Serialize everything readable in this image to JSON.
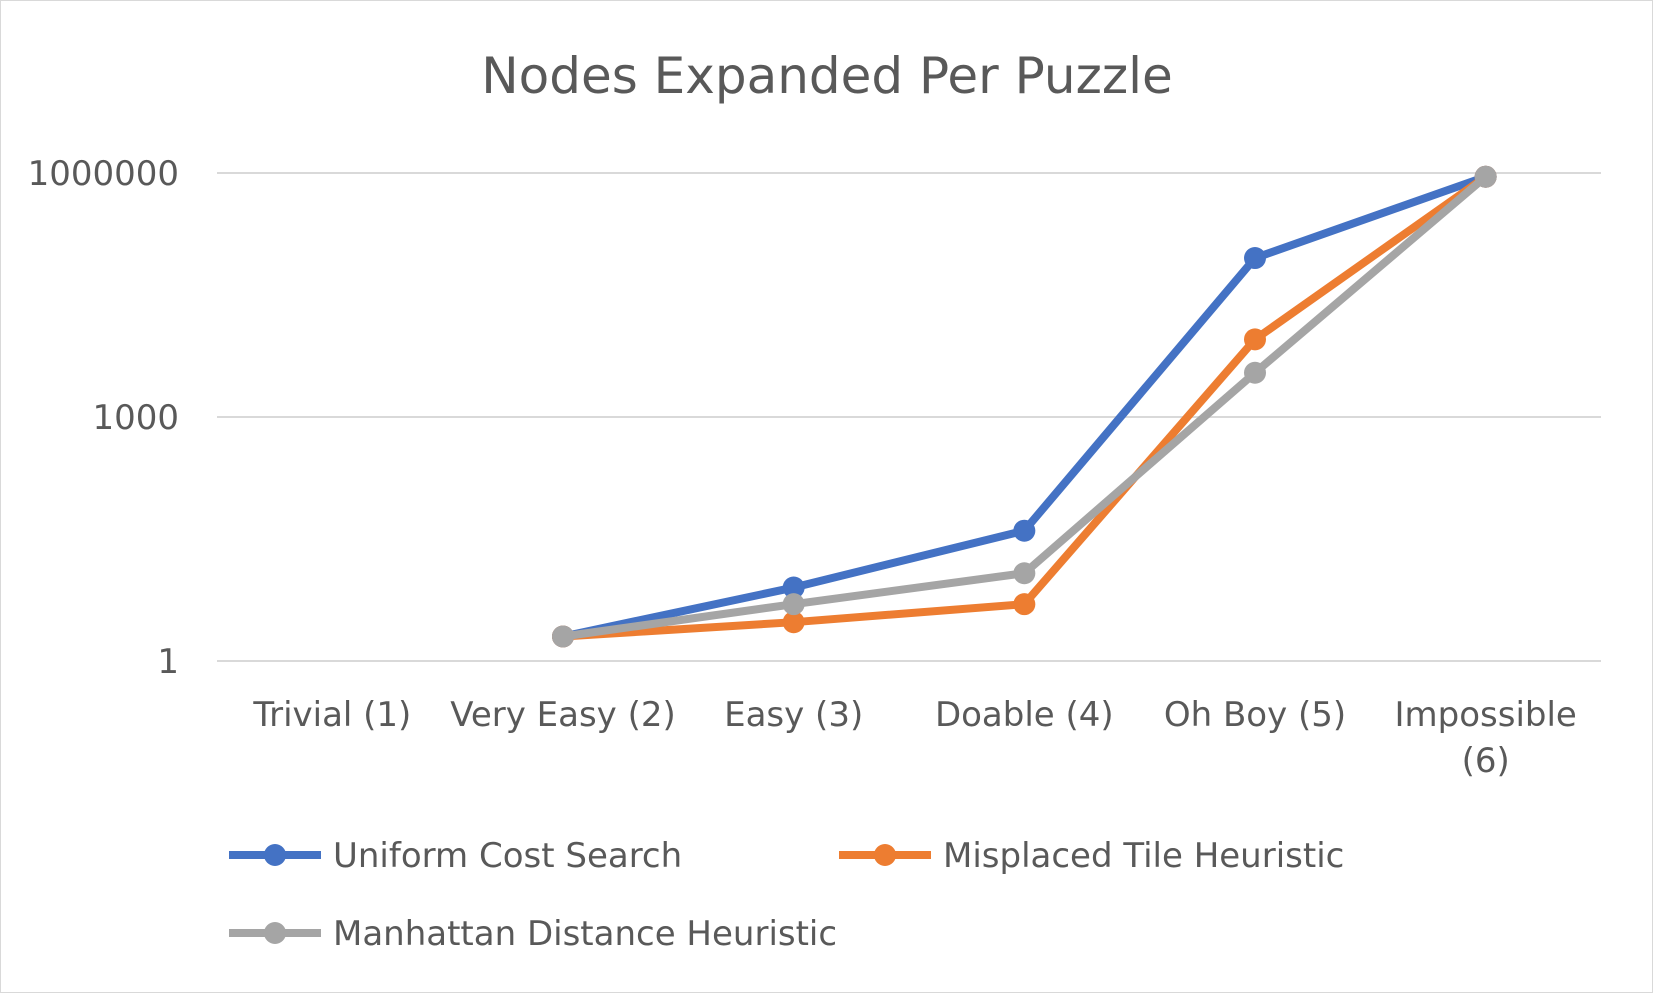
{
  "chart_data": {
    "type": "line",
    "title": "Nodes Expanded Per Puzzle",
    "xlabel": "",
    "ylabel": "",
    "y_scale": "log",
    "ylim": [
      1,
      1000000
    ],
    "y_ticks": [
      "1",
      "1000",
      "1000000"
    ],
    "categories": [
      [
        "Trivial (1)"
      ],
      [
        "Very Easy (2)"
      ],
      [
        "Easy (3)"
      ],
      [
        "Doable (4)"
      ],
      [
        "Oh Boy (5)"
      ],
      [
        "Impossible",
        "(6)"
      ]
    ],
    "grid": "horizontal",
    "legend_position": "bottom",
    "series": [
      {
        "name": "Uniform Cost Search",
        "color": "#4472C4",
        "values": [
          null,
          2,
          8,
          40,
          90000,
          900000
        ]
      },
      {
        "name": "Misplaced Tile Heuristic",
        "color": "#ED7D31",
        "values": [
          null,
          2,
          3,
          5,
          9000,
          900000
        ]
      },
      {
        "name": "Manhattan Distance Heuristic",
        "color": "#A5A5A5",
        "values": [
          null,
          2,
          5,
          12,
          3500,
          900000
        ]
      }
    ]
  }
}
